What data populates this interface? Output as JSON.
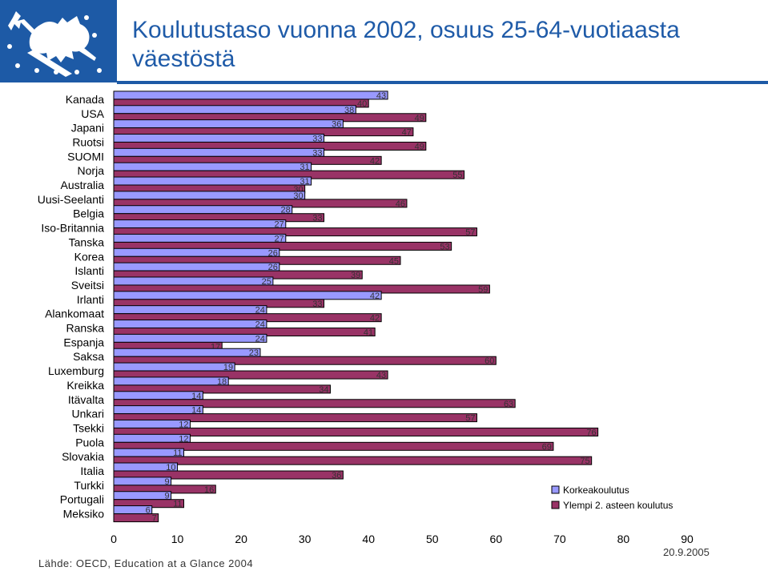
{
  "header": {
    "title": "Koulutustaso vuonna 2002, osuus 25-64-vuotiaasta väestöstä"
  },
  "footer": {
    "source": "Lähde: OECD, Education at a Glance 2004",
    "date": "20.9.2005"
  },
  "colors": {
    "brand": "#1d5aa6",
    "korkeakoulutus": "#9999ff",
    "ylempi": "#993366"
  },
  "chart_data": {
    "type": "bar",
    "orientation": "horizontal",
    "stacked": false,
    "categories": [
      "Kanada",
      "USA",
      "Japani",
      "Ruotsi",
      "SUOMI",
      "Norja",
      "Australia",
      "Uusi-Seelanti",
      "Belgia",
      "Iso-Britannia",
      "Tanska",
      "Korea",
      "Islanti",
      "Sveitsi",
      "Irlanti",
      "Alankomaat",
      "Ranska",
      "Espanja",
      "Saksa",
      "Luxemburg",
      "Kreikka",
      "Itävalta",
      "Unkari",
      "Tsekki",
      "Puola",
      "Slovakia",
      "Italia",
      "Turkki",
      "Portugali",
      "Meksiko"
    ],
    "series": [
      {
        "name": "Korkeakoulutus",
        "color": "#9999ff",
        "values": [
          43,
          38,
          36,
          33,
          33,
          31,
          31,
          30,
          28,
          27,
          27,
          26,
          26,
          25,
          42,
          24,
          24,
          24,
          23,
          19,
          18,
          14,
          14,
          12,
          12,
          11,
          10,
          9,
          9,
          6
        ]
      },
      {
        "name": "Ylempi 2. asteen koulutus",
        "color": "#993366",
        "values": [
          40,
          49,
          47,
          49,
          42,
          55,
          30,
          46,
          33,
          57,
          53,
          45,
          39,
          59,
          33,
          42,
          41,
          17,
          60,
          43,
          34,
          63,
          57,
          76,
          69,
          75,
          36,
          16,
          11,
          7
        ]
      }
    ],
    "xlim": [
      0,
      90
    ],
    "xticks": [
      0,
      10,
      20,
      30,
      40,
      50,
      60,
      70,
      80,
      90
    ],
    "grid": false,
    "legend": "bottom-right"
  }
}
